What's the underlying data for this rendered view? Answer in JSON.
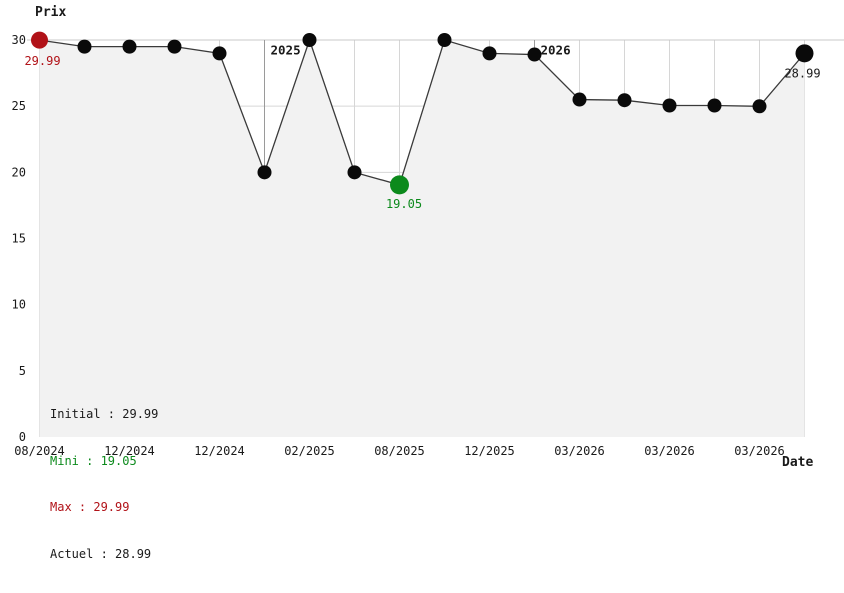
{
  "colors": {
    "red": "#b11218",
    "green": "#0c8a1c",
    "black": "#1a1a1a",
    "line": "#3a3a3a",
    "dot": "#0a0a0a",
    "fill": "#f2f2f2",
    "grid": "#d6d6d6",
    "year_line": "#9a9a9a",
    "text": "#1a1a1a"
  },
  "chart_data": {
    "type": "line",
    "ylabel": "Prix",
    "xlabel": "Date",
    "ylim": [
      0,
      30
    ],
    "y_ticks": [
      0,
      5,
      10,
      15,
      20,
      25,
      30
    ],
    "x_tick_labels": [
      "08/2024",
      "12/2024",
      "12/2024",
      "02/2025",
      "08/2025",
      "12/2025",
      "03/2026",
      "03/2026",
      "03/2026"
    ],
    "x_tick_every": 2,
    "values": [
      29.99,
      29.5,
      29.5,
      29.5,
      28.99,
      20.0,
      30.0,
      20.0,
      19.05,
      30.0,
      28.99,
      28.9,
      25.5,
      25.45,
      25.05,
      25.05,
      24.99,
      28.99
    ],
    "markers": [
      {
        "index": 0,
        "kind": "initial",
        "label": "29.99",
        "color_key": "red"
      },
      {
        "index": 8,
        "kind": "minimum",
        "label": "19.05",
        "color_key": "green"
      },
      {
        "index": 17,
        "kind": "current",
        "label": "28.99",
        "color_key": "black"
      }
    ],
    "year_markers": [
      {
        "index": 5,
        "label": "2025"
      },
      {
        "index": 11,
        "label": "2026"
      }
    ],
    "grid": true,
    "legend_position": "bottom-left",
    "area_fill": true
  },
  "legend": {
    "items": [
      {
        "name": "Initial",
        "text": "Initial : 29.99",
        "color": "black"
      },
      {
        "name": "Mini",
        "text": "Mini : 19.05",
        "color": "green"
      },
      {
        "name": "Max",
        "text": "Max : 29.99",
        "color": "red"
      },
      {
        "name": "Actuel",
        "text": "Actuel : 28.99",
        "color": "black"
      }
    ]
  }
}
